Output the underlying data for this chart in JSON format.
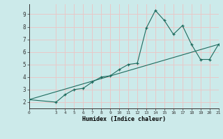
{
  "x": [
    0,
    3,
    4,
    5,
    6,
    7,
    8,
    9,
    10,
    11,
    12,
    13,
    14,
    15,
    16,
    17,
    18,
    19,
    20,
    21
  ],
  "y": [
    2.2,
    2.0,
    2.6,
    3.0,
    3.1,
    3.6,
    4.0,
    4.1,
    4.6,
    5.0,
    5.1,
    7.9,
    9.3,
    8.5,
    7.4,
    8.1,
    6.6,
    5.4,
    5.4,
    6.6
  ],
  "line_x": [
    0,
    21
  ],
  "line_y": [
    2.2,
    6.6
  ],
  "color": "#1e6b5e",
  "bg_color": "#cceaea",
  "grid_color": "#e8c8c8",
  "xlabel": "Humidex (Indice chaleur)",
  "xlim": [
    0,
    21
  ],
  "ylim": [
    1.5,
    9.8
  ],
  "yticks": [
    2,
    3,
    4,
    5,
    6,
    7,
    8,
    9
  ],
  "xticks": [
    0,
    3,
    4,
    5,
    6,
    7,
    8,
    9,
    10,
    11,
    12,
    13,
    14,
    15,
    16,
    17,
    18,
    19,
    20,
    21
  ]
}
